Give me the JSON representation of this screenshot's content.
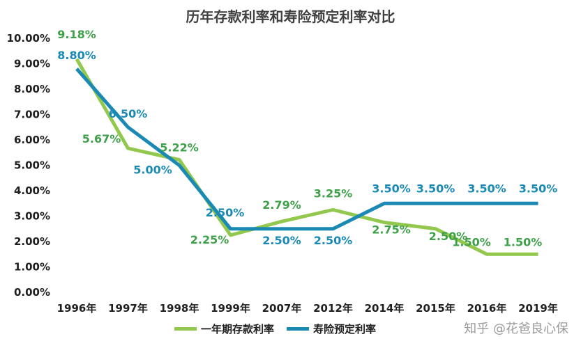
{
  "chart_data": {
    "type": "line",
    "title": "历年存款利率和寿险预定利率对比",
    "categories": [
      "1996年",
      "1997年",
      "1998年",
      "1999年",
      "2007年",
      "2012年",
      "2014年",
      "2015年",
      "2016年",
      "2019年"
    ],
    "yticks": [
      "10.00%",
      "9.00%",
      "8.00%",
      "7.00%",
      "6.00%",
      "5.00%",
      "4.00%",
      "3.00%",
      "2.00%",
      "1.00%",
      "0.00%"
    ],
    "ylim": [
      0,
      10
    ],
    "series": [
      {
        "name": "一年期存款利率",
        "color": "#92c84d",
        "values": [
          9.18,
          5.67,
          5.22,
          2.25,
          2.79,
          3.25,
          2.75,
          2.5,
          1.5,
          1.5
        ],
        "labels": [
          "9.18%",
          "5.67%",
          "5.22%",
          "2.25%",
          "2.79%",
          "3.25%",
          "2.75%",
          "2.50%",
          "1.50%",
          "1.50%"
        ]
      },
      {
        "name": "寿险预定利率",
        "color": "#1a8ab5",
        "values": [
          8.8,
          6.5,
          5.0,
          2.5,
          2.5,
          2.5,
          3.5,
          3.5,
          3.5,
          3.5
        ],
        "labels": [
          "8.80%",
          "6.50%",
          "5.00%",
          "2.50%",
          "2.50%",
          "2.50%",
          "3.50%",
          "3.50%",
          "3.50%",
          "3.50%"
        ]
      }
    ],
    "legend_position": "bottom"
  },
  "watermark": "知乎 @花爸良心保"
}
